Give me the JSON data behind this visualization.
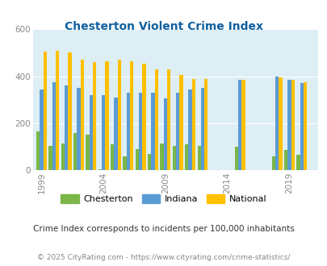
{
  "title": "Chesterton Violent Crime Index",
  "subtitle": "Crime Index corresponds to incidents per 100,000 inhabitants",
  "footer": "© 2025 CityRating.com - https://www.cityrating.com/crime-statistics/",
  "years": [
    1999,
    2000,
    2001,
    2002,
    2003,
    2004,
    2005,
    2006,
    2007,
    2008,
    2009,
    2010,
    2011,
    2012,
    2015,
    2018,
    2019,
    2020
  ],
  "chesterton": [
    165,
    105,
    115,
    160,
    150,
    5,
    110,
    60,
    90,
    70,
    115,
    105,
    110,
    105,
    100,
    60,
    85,
    65
  ],
  "indiana": [
    345,
    375,
    360,
    350,
    320,
    320,
    310,
    330,
    330,
    330,
    305,
    330,
    345,
    350,
    385,
    400,
    385,
    370
  ],
  "national": [
    505,
    510,
    500,
    470,
    460,
    465,
    470,
    465,
    455,
    430,
    430,
    405,
    390,
    390,
    385,
    395,
    385,
    375
  ],
  "xtick_years": [
    1999,
    2004,
    2009,
    2014,
    2019
  ],
  "ylim": [
    0,
    600
  ],
  "yticks": [
    0,
    200,
    400,
    600
  ],
  "color_chesterton": "#7ab648",
  "color_indiana": "#5b9bd5",
  "color_national": "#ffc000",
  "bg_color": "#ddeef5",
  "title_color": "#1060a0",
  "subtitle_color": "#333333",
  "footer_color": "#888888",
  "bar_width": 0.28
}
